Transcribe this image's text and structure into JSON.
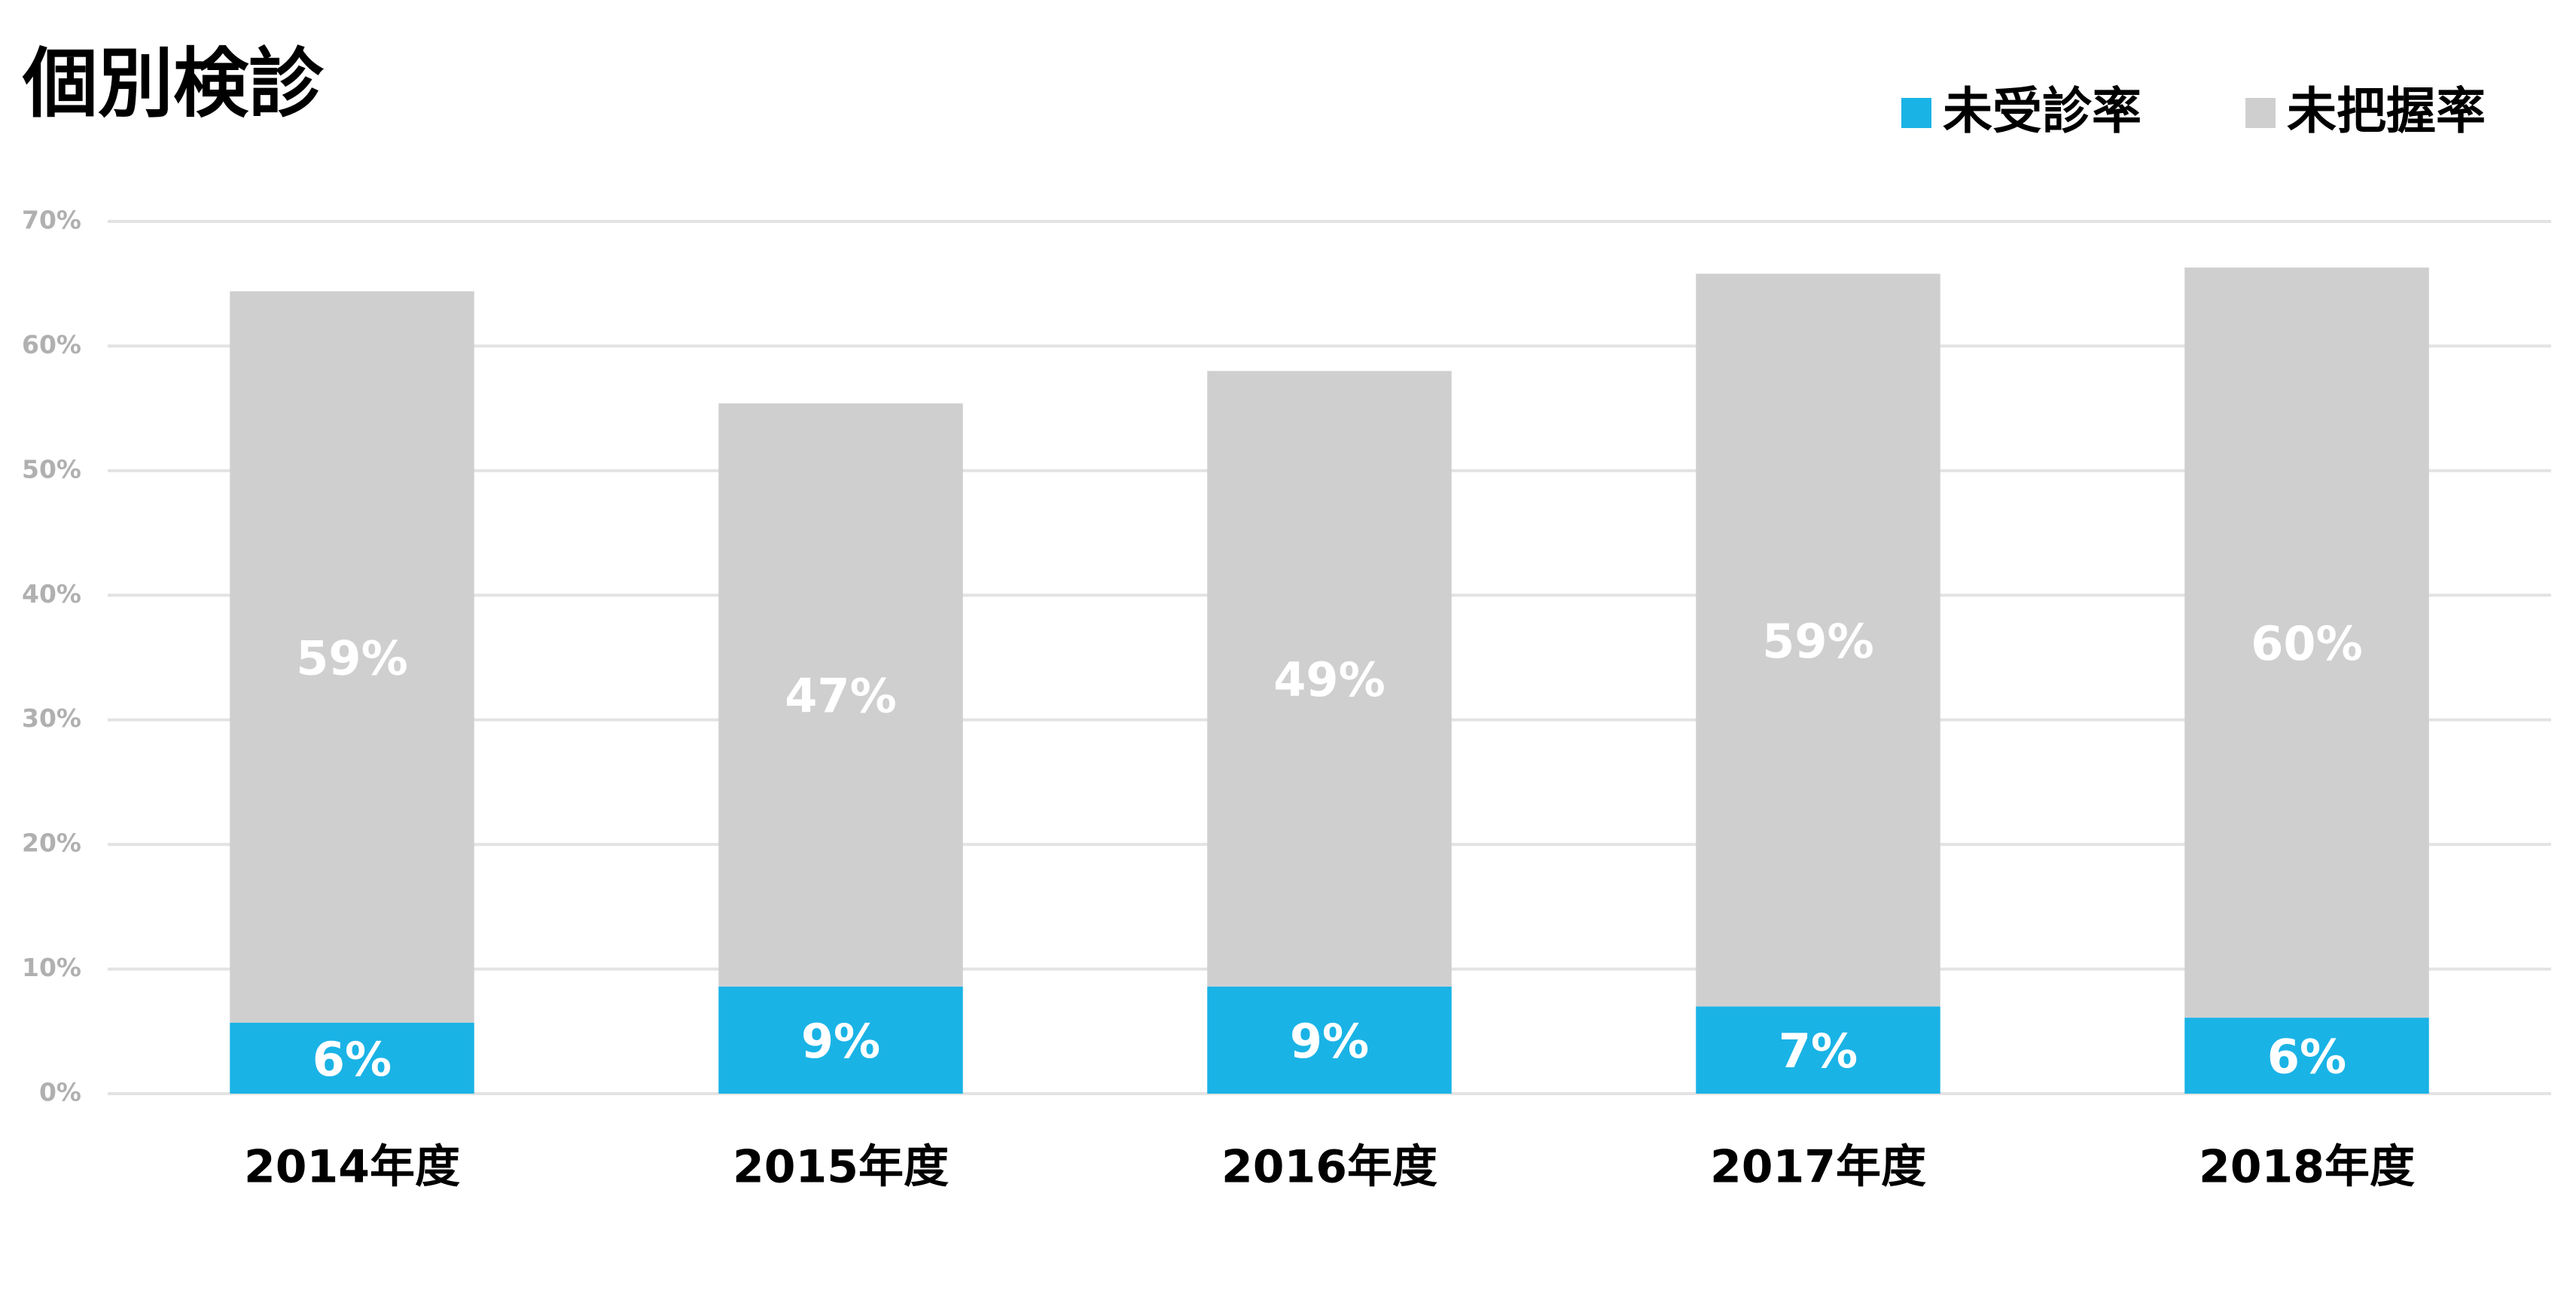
{
  "chart_data": {
    "type": "stacked-bar",
    "title": "個別検診",
    "categories": [
      "2014年度",
      "2015年度",
      "2016年度",
      "2017年度",
      "2018年度"
    ],
    "series": [
      {
        "name": "未受診率",
        "color": "#1ab3e6",
        "values": [
          5.7,
          8.6,
          8.6,
          7.0,
          6.1
        ],
        "value_labels": [
          "6%",
          "9%",
          "9%",
          "7%",
          "6%"
        ]
      },
      {
        "name": "未把握率",
        "color": "#d0cfd0",
        "values": [
          58.7,
          46.8,
          49.4,
          58.8,
          60.2
        ],
        "value_labels": [
          "59%",
          "47%",
          "49%",
          "59%",
          "60%"
        ]
      }
    ],
    "ylim": [
      0,
      70
    ],
    "yticks": [
      {
        "value": 0,
        "label": "0%"
      },
      {
        "value": 10,
        "label": "10%"
      },
      {
        "value": 20,
        "label": "20%"
      },
      {
        "value": 30,
        "label": "30%"
      },
      {
        "value": 40,
        "label": "40%"
      },
      {
        "value": 50,
        "label": "50%"
      },
      {
        "value": 60,
        "label": "60%"
      },
      {
        "value": 70,
        "label": "70%"
      }
    ],
    "grid": true,
    "legend": "top-right"
  }
}
